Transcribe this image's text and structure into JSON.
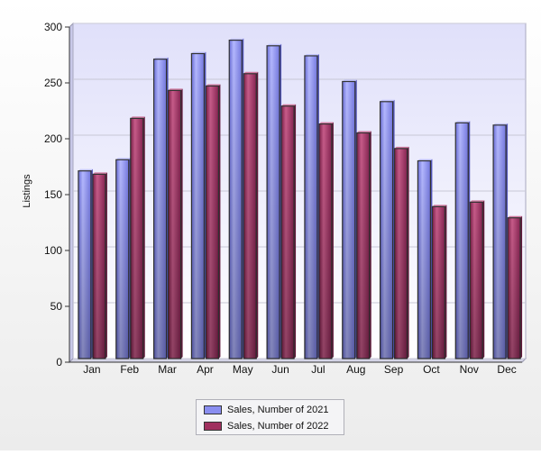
{
  "chart_data": {
    "type": "bar",
    "ylabel": "Listings",
    "xlabel": "",
    "ylim": [
      0,
      300
    ],
    "yticks": [
      0,
      50,
      100,
      150,
      200,
      250,
      300
    ],
    "grid": true,
    "legend_position": "bottom",
    "categories": [
      "Jan",
      "Feb",
      "Mar",
      "Apr",
      "May",
      "Jun",
      "Jul",
      "Aug",
      "Sep",
      "Oct",
      "Nov",
      "Dec"
    ],
    "series": [
      {
        "name": "Sales, Number of 2021",
        "color": "#8a8ef0",
        "values": [
          168,
          178,
          268,
          273,
          285,
          280,
          271,
          248,
          230,
          177,
          211,
          209
        ]
      },
      {
        "name": "Sales, Number of 2022",
        "color": "#a0305f",
        "values": [
          165,
          215,
          240,
          244,
          255,
          226,
          210,
          202,
          188,
          136,
          140,
          126
        ]
      }
    ]
  }
}
